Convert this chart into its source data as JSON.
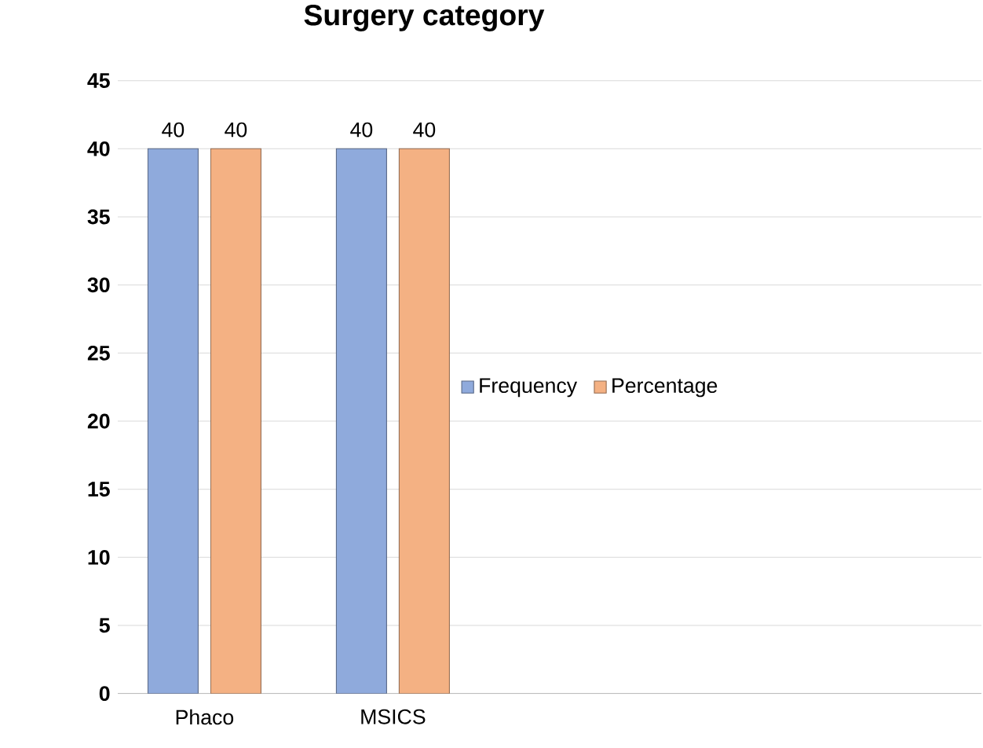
{
  "chart_data": {
    "type": "bar",
    "title": "Surgery category",
    "categories": [
      "Phaco",
      "MSICS"
    ],
    "series": [
      {
        "name": "Frequency",
        "color": "#8faadc",
        "values": [
          40,
          40
        ]
      },
      {
        "name": "Percentage",
        "color": "#f4b183",
        "values": [
          40,
          40
        ]
      }
    ],
    "ylim": [
      0,
      45
    ],
    "yticks": [
      0,
      5,
      10,
      15,
      20,
      25,
      30,
      35,
      40,
      45
    ],
    "grid": "y",
    "legend": "right",
    "data_labels": true
  }
}
